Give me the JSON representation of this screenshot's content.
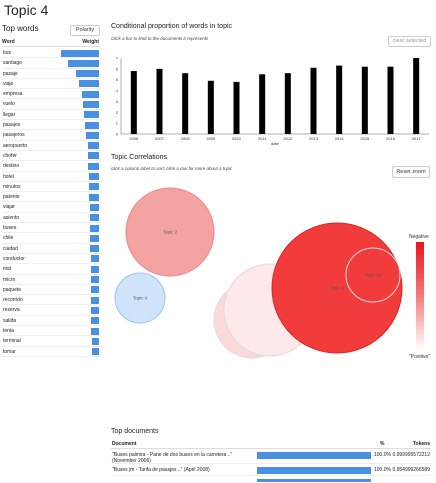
{
  "page": {
    "title": "Topic 4"
  },
  "top_words": {
    "title": "Top words",
    "polarity_label": "Polarity",
    "col_word": "Word",
    "col_weight": "Weight",
    "words": [
      {
        "label": "bus",
        "weight": 1.0
      },
      {
        "label": "santiago",
        "weight": 0.82
      },
      {
        "label": "pasaje",
        "weight": 0.6
      },
      {
        "label": "viaje",
        "weight": 0.52
      },
      {
        "label": "empresa",
        "weight": 0.44
      },
      {
        "label": "vuelo",
        "weight": 0.42
      },
      {
        "label": "llegar",
        "weight": 0.4
      },
      {
        "label": "pasajes",
        "weight": 0.37
      },
      {
        "label": "pasajeros",
        "weight": 0.33
      },
      {
        "label": "aeropuerto",
        "weight": 0.3
      },
      {
        "label": "chofer",
        "weight": 0.29
      },
      {
        "label": "destino",
        "weight": 0.28
      },
      {
        "label": "hotel",
        "weight": 0.27
      },
      {
        "label": "minutos",
        "weight": 0.27
      },
      {
        "label": "patente",
        "weight": 0.26
      },
      {
        "label": "viajar",
        "weight": 0.25
      },
      {
        "label": "asiento",
        "weight": 0.24
      },
      {
        "label": "buses",
        "weight": 0.24
      },
      {
        "label": "chile",
        "weight": 0.23
      },
      {
        "label": "ciudad",
        "weight": 0.23
      },
      {
        "label": "conductor",
        "weight": 0.22
      },
      {
        "label": "mal",
        "weight": 0.22
      },
      {
        "label": "micro",
        "weight": 0.22
      },
      {
        "label": "paquete",
        "weight": 0.21
      },
      {
        "label": "recorrido",
        "weight": 0.21
      },
      {
        "label": "reserva",
        "weight": 0.2
      },
      {
        "label": "salida",
        "weight": 0.2
      },
      {
        "label": "tenia",
        "weight": 0.2
      },
      {
        "label": "terminal",
        "weight": 0.19
      },
      {
        "label": "tomar",
        "weight": 0.19
      }
    ]
  },
  "conditional": {
    "title": "Conditional proportion of words in topic",
    "hint": "Click a bar to limit to the documents it represents",
    "clear_label": "clear selected"
  },
  "correlations": {
    "title": "Topic Correlations",
    "hint": "click a column label to sort; click a row for more about a topic",
    "reset_label": "Reset zoom",
    "legend_negative": "Negative",
    "legend_positive": "\"Positive\"",
    "bubbles": [
      {
        "label": "Topic 2",
        "fill": "#f4a3a3",
        "stroke": "#e88"
      },
      {
        "label": "Topic 4",
        "fill": "#cfe3fa",
        "stroke": "#9cc3ef"
      },
      {
        "label": "Topic 6",
        "fill": "#fbd9d9",
        "stroke": "#ddd"
      },
      {
        "label": "",
        "fill": "#fde9e9",
        "stroke": "#ddd"
      },
      {
        "label": "Topic 8",
        "fill": "#f23b3b",
        "stroke": "#d22"
      },
      {
        "label": "Topic 10",
        "fill": "none",
        "stroke": "#ddd"
      }
    ]
  },
  "chart_data": {
    "type": "bar",
    "categories": [
      "2006",
      "2007",
      "2008",
      "2009",
      "2010",
      "2011",
      "2012",
      "2013",
      "2014",
      "2015",
      "2016",
      "2017"
    ],
    "values": [
      5.8,
      6.0,
      5.6,
      4.9,
      4.8,
      5.5,
      5.6,
      6.1,
      6.3,
      6.2,
      6.2,
      7.0
    ],
    "xlabel": "date",
    "ylabel": "",
    "ylim": [
      0,
      7
    ],
    "yticks": [
      "0",
      "1",
      "2",
      "3",
      "4",
      "5",
      "6",
      "7"
    ],
    "bar_color": "#000000"
  },
  "top_documents": {
    "title": "Top documents",
    "col_document": "Document",
    "col_pct": "%",
    "col_tokens": "Tokens",
    "rows": [
      {
        "document": "\"Buses palmira - Pane de dos buses en la carretera ..\" (November 2006)",
        "pct": "100.0%",
        "tokens": "0.999995572212"
      },
      {
        "document": "\"Buses jm - Tarifa de pasajes ..\" (April 2008)",
        "pct": "100.0%",
        "tokens": "0.954999266589"
      }
    ]
  }
}
